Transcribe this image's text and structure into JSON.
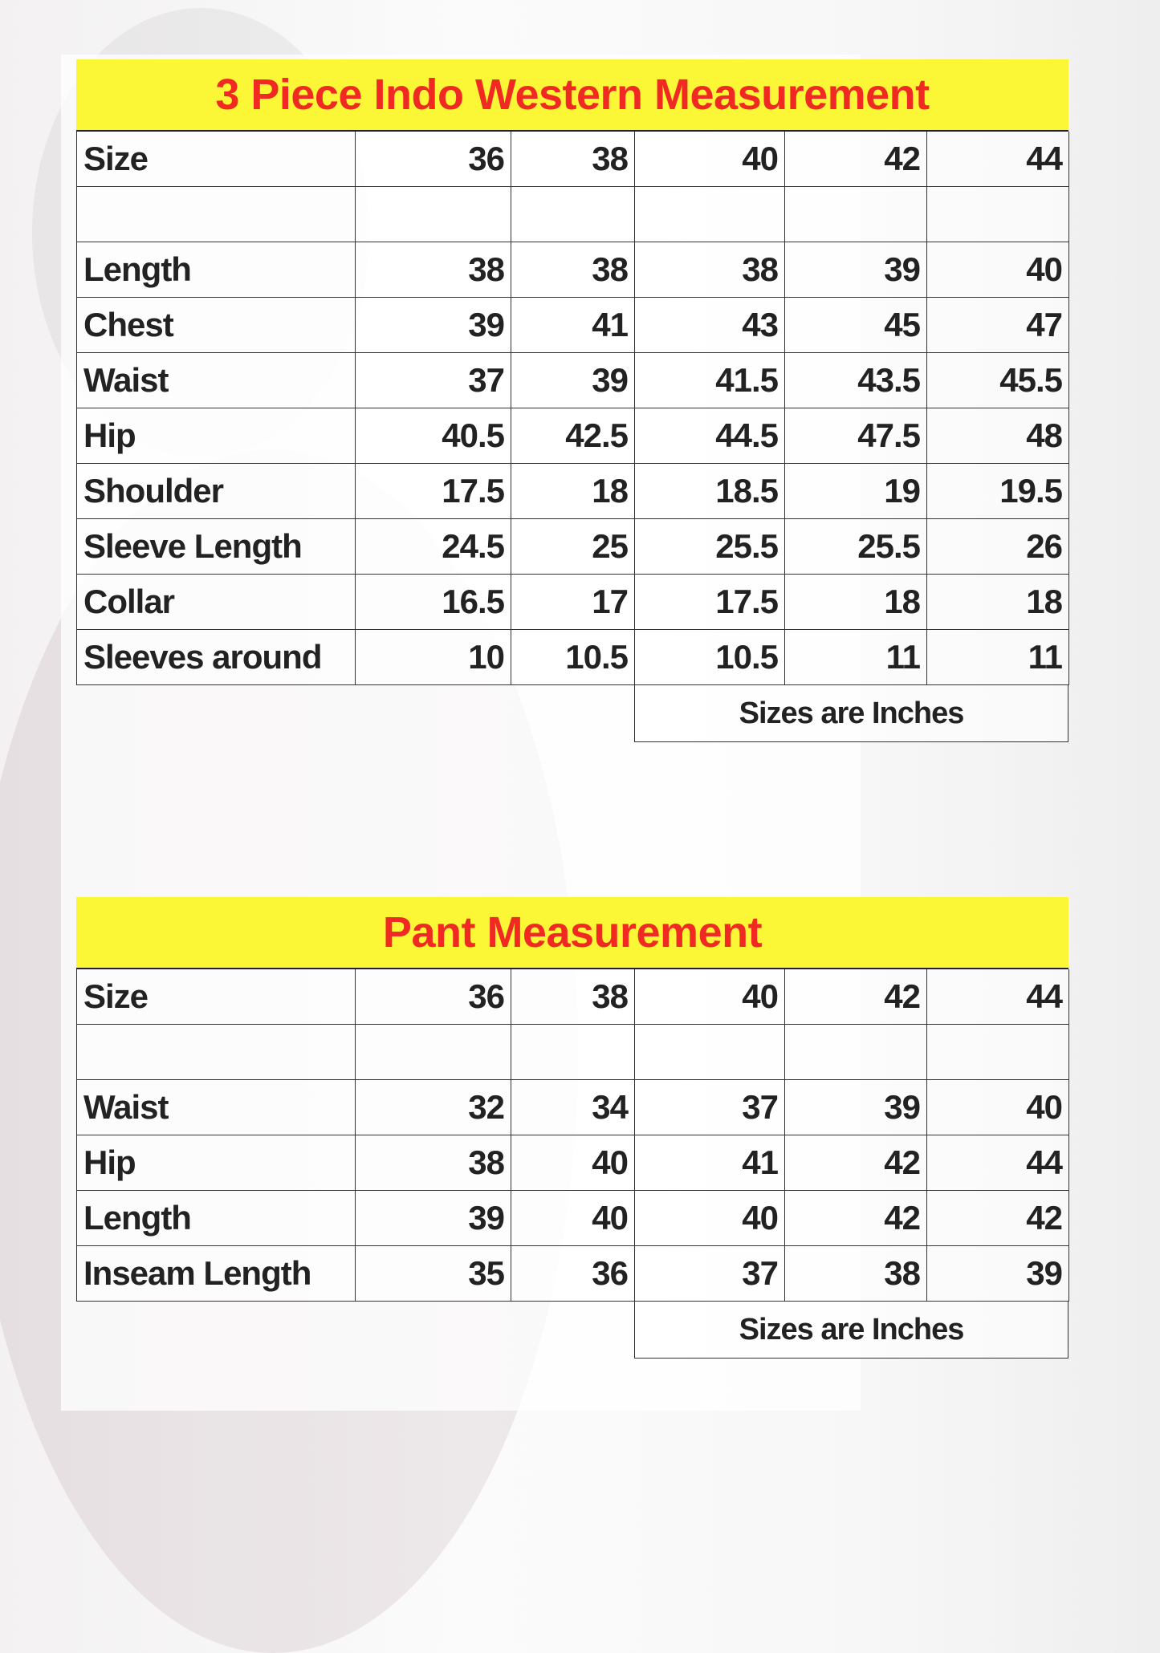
{
  "charts": [
    {
      "title": "3 Piece Indo Western Measurement",
      "header": {
        "label": "Size",
        "values": [
          "36",
          "38",
          "40",
          "42",
          "44"
        ]
      },
      "rows": [
        {
          "label": "Length",
          "values": [
            "38",
            "38",
            "38",
            "39",
            "40"
          ]
        },
        {
          "label": "Chest",
          "values": [
            "39",
            "41",
            "43",
            "45",
            "47"
          ]
        },
        {
          "label": "Waist",
          "values": [
            "37",
            "39",
            "41.5",
            "43.5",
            "45.5"
          ]
        },
        {
          "label": "Hip",
          "values": [
            "40.5",
            "42.5",
            "44.5",
            "47.5",
            "48"
          ]
        },
        {
          "label": "Shoulder",
          "values": [
            "17.5",
            "18",
            "18.5",
            "19",
            "19.5"
          ]
        },
        {
          "label": "Sleeve Length",
          "values": [
            "24.5",
            "25",
            "25.5",
            "25.5",
            "26"
          ]
        },
        {
          "label": "Collar",
          "values": [
            "16.5",
            "17",
            "17.5",
            "18",
            "18"
          ]
        },
        {
          "label": "Sleeves around",
          "values": [
            "10",
            "10.5",
            "10.5",
            "11",
            "11"
          ]
        }
      ],
      "note": "Sizes are Inches"
    },
    {
      "title": "Pant Measurement",
      "header": {
        "label": "Size",
        "values": [
          "36",
          "38",
          "40",
          "42",
          "44"
        ]
      },
      "rows": [
        {
          "label": "Waist",
          "values": [
            "32",
            "34",
            "37",
            "39",
            "40"
          ]
        },
        {
          "label": "Hip",
          "values": [
            "38",
            "40",
            "41",
            "42",
            "44"
          ]
        },
        {
          "label": "Length",
          "values": [
            "39",
            "40",
            "40",
            "42",
            "42"
          ]
        },
        {
          "label": "Inseam Length",
          "values": [
            "35",
            "36",
            "37",
            "38",
            "39"
          ]
        }
      ],
      "note": "Sizes are Inches"
    }
  ],
  "colors": {
    "title_bg": "#fbf737",
    "title_text": "#f02a22"
  }
}
